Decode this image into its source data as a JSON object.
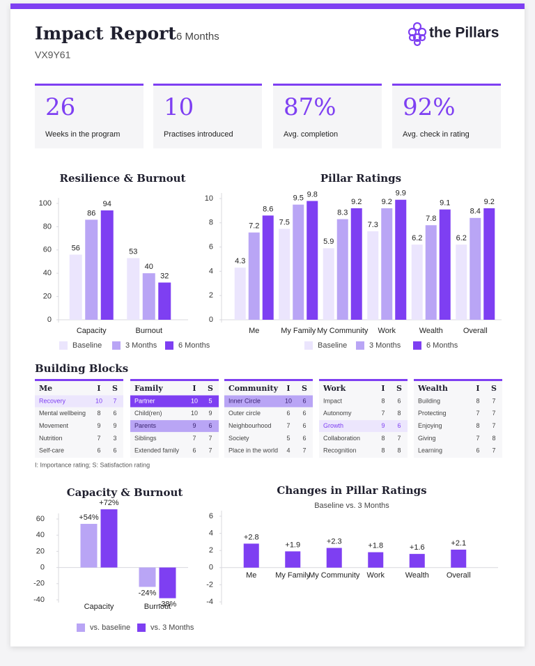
{
  "header": {
    "title": "Impact Report",
    "period": "6 Months",
    "code": "VX9Y61",
    "logo": "the Pillars"
  },
  "kpis": [
    {
      "value": "26",
      "label": "Weeks in the program"
    },
    {
      "value": "10",
      "label": "Practises introduced"
    },
    {
      "value": "87%",
      "label": "Avg. completion"
    },
    {
      "value": "92%",
      "label": "Avg. check in rating"
    }
  ],
  "chart_data": [
    {
      "type": "bar",
      "title": "Resilience & Burnout",
      "categories": [
        "Capacity",
        "Burnout"
      ],
      "series": [
        {
          "name": "Baseline",
          "color": "#ebe5fd",
          "values": [
            56,
            53
          ]
        },
        {
          "name": "3 Months",
          "color": "#b9a5f5",
          "values": [
            86,
            40
          ]
        },
        {
          "name": "6 Months",
          "color": "#7e3ff2",
          "values": [
            94,
            32
          ]
        }
      ],
      "ylim": [
        0,
        100
      ],
      "yticks": [
        0,
        20,
        40,
        60,
        80,
        100
      ],
      "legend": "bottom"
    },
    {
      "type": "bar",
      "title": "Pillar Ratings",
      "categories": [
        "Me",
        "My Family",
        "My Community",
        "Work",
        "Wealth",
        "Overall"
      ],
      "series": [
        {
          "name": "Baseline",
          "color": "#ebe5fd",
          "values": [
            4.3,
            7.5,
            5.9,
            7.3,
            6.2,
            6.2
          ]
        },
        {
          "name": "3 Months",
          "color": "#b9a5f5",
          "values": [
            7.2,
            9.5,
            8.3,
            9.2,
            7.8,
            8.4
          ]
        },
        {
          "name": "6 Months",
          "color": "#7e3ff2",
          "values": [
            8.6,
            9.8,
            9.2,
            9.9,
            9.1,
            9.2
          ]
        }
      ],
      "ylim": [
        0,
        10
      ],
      "yticks": [
        0,
        2,
        4,
        6,
        8,
        10
      ],
      "legend": "bottom"
    },
    {
      "type": "bar",
      "title": "Capacity & Burnout",
      "categories": [
        "Capacity",
        "Burnout"
      ],
      "series": [
        {
          "name": "vs. baseline",
          "color": "#b9a5f5",
          "values": [
            54,
            -24
          ],
          "value_labels": [
            "+54%",
            "-24%"
          ]
        },
        {
          "name": "vs. 3 Months",
          "color": "#7e3ff2",
          "values": [
            72,
            -38
          ],
          "value_labels": [
            "+72%",
            "-38%"
          ]
        }
      ],
      "ylim": [
        -40,
        60
      ],
      "yticks": [
        -40,
        -20,
        0,
        20,
        40,
        60
      ],
      "legend": "bottom"
    },
    {
      "type": "bar",
      "title": "Changes in Pillar Ratings",
      "subtitle": "Baseline vs. 3 Months",
      "categories": [
        "Me",
        "My Family",
        "My Community",
        "Work",
        "Wealth",
        "Overall"
      ],
      "values": [
        2.8,
        1.9,
        2.3,
        1.8,
        1.6,
        2.1
      ],
      "value_labels": [
        "+2.8",
        "+1.9",
        "+2.3",
        "+1.8",
        "+1.6",
        "+2.1"
      ],
      "color": "#7e3ff2",
      "ylim": [
        -4,
        6
      ],
      "yticks": [
        -4,
        -2,
        0,
        2,
        4,
        6
      ]
    }
  ],
  "building_blocks": {
    "title": "Building Blocks",
    "note": "I: Importance rating; S: Satisfaction rating",
    "tables": [
      {
        "columns": [
          "Me",
          "I",
          "S"
        ],
        "rows": [
          [
            "Recovery",
            10,
            7
          ],
          [
            "Mental wellbeing",
            8,
            6
          ],
          [
            "Movement",
            9,
            9
          ],
          [
            "Nutrition",
            7,
            3
          ],
          [
            "Self-care",
            6,
            6
          ]
        ],
        "highlights": [
          {
            "row": 0,
            "tone": "light"
          }
        ]
      },
      {
        "columns": [
          "Family",
          "I",
          "S"
        ],
        "rows": [
          [
            "Partner",
            10,
            5
          ],
          [
            "Child(ren)",
            10,
            9
          ],
          [
            "Parents",
            9,
            6
          ],
          [
            "Siblings",
            7,
            7
          ],
          [
            "Extended family",
            6,
            7
          ]
        ],
        "highlights": [
          {
            "row": 0,
            "tone": "strong"
          },
          {
            "row": 2,
            "tone": "medium"
          }
        ]
      },
      {
        "columns": [
          "Community",
          "I",
          "S"
        ],
        "rows": [
          [
            "Inner Circle",
            10,
            6
          ],
          [
            "Outer circle",
            6,
            6
          ],
          [
            "Neighbourhood",
            7,
            6
          ],
          [
            "Society",
            5,
            6
          ],
          [
            "Place in the world",
            4,
            7
          ]
        ],
        "highlights": [
          {
            "row": 0,
            "tone": "medium"
          }
        ]
      },
      {
        "columns": [
          "Work",
          "I",
          "S"
        ],
        "rows": [
          [
            "Impact",
            8,
            6
          ],
          [
            "Autonomy",
            7,
            8
          ],
          [
            "Growth",
            9,
            6
          ],
          [
            "Collaboration",
            8,
            7
          ],
          [
            "Recognition",
            8,
            8
          ]
        ],
        "highlights": [
          {
            "row": 2,
            "tone": "light"
          }
        ]
      },
      {
        "columns": [
          "Wealth",
          "I",
          "S"
        ],
        "rows": [
          [
            "Building",
            8,
            7
          ],
          [
            "Protecting",
            7,
            7
          ],
          [
            "Enjoying",
            8,
            7
          ],
          [
            "Giving",
            7,
            8
          ],
          [
            "Learning",
            6,
            7
          ]
        ],
        "highlights": []
      }
    ]
  }
}
